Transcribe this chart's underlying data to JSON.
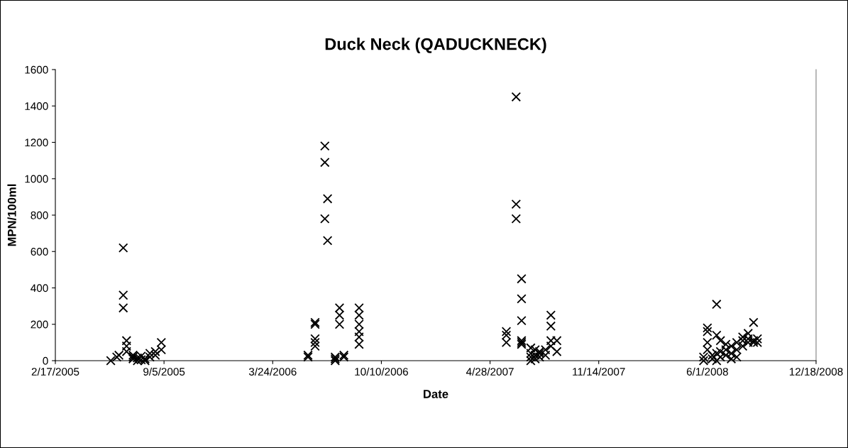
{
  "chart_data": {
    "type": "scatter",
    "title": "Duck Neck (QADUCKNECK)",
    "xlabel": "Date",
    "ylabel": "MPN/100ml",
    "series": [
      {
        "color": "#000000",
        "x": [
          "2005-05-30",
          "2005-06-10",
          "2005-06-14",
          "2005-06-22",
          "2005-06-22",
          "2005-06-22",
          "2005-06-28",
          "2005-06-28",
          "2005-06-28",
          "2005-07-10",
          "2005-07-10",
          "2005-07-10",
          "2005-07-18",
          "2005-07-18",
          "2005-07-25",
          "2005-07-25",
          "2005-08-01",
          "2005-08-01",
          "2005-08-10",
          "2005-08-10",
          "2005-08-20",
          "2005-08-20",
          "2005-08-31",
          "2005-08-31",
          "2006-05-28",
          "2006-05-28",
          "2006-06-10",
          "2006-06-10",
          "2006-06-10",
          "2006-06-10",
          "2006-06-10",
          "2006-06-28",
          "2006-06-28",
          "2006-06-28",
          "2006-07-03",
          "2006-07-03",
          "2006-07-17",
          "2006-07-17",
          "2006-07-17",
          "2006-07-25",
          "2006-07-25",
          "2006-07-25",
          "2006-08-02",
          "2006-08-02",
          "2006-08-30",
          "2006-08-30",
          "2006-08-30",
          "2006-08-30",
          "2006-08-30",
          "2006-08-30",
          "2007-05-28",
          "2007-05-28",
          "2007-05-28",
          "2007-06-15",
          "2007-06-15",
          "2007-06-15",
          "2007-06-25",
          "2007-06-25",
          "2007-06-25",
          "2007-06-25",
          "2007-06-25",
          "2007-06-25",
          "2007-07-12",
          "2007-07-12",
          "2007-07-12",
          "2007-07-12",
          "2007-07-20",
          "2007-07-20",
          "2007-07-20",
          "2007-07-28",
          "2007-07-28",
          "2007-07-28",
          "2007-08-08",
          "2007-08-08",
          "2007-08-18",
          "2007-08-18",
          "2007-08-18",
          "2007-08-18",
          "2007-08-29",
          "2007-08-29",
          "2008-05-25",
          "2008-05-25",
          "2008-06-01",
          "2008-06-01",
          "2008-06-01",
          "2008-06-01",
          "2008-06-10",
          "2008-06-10",
          "2008-06-18",
          "2008-06-18",
          "2008-06-18",
          "2008-06-18",
          "2008-06-25",
          "2008-06-25",
          "2008-06-25",
          "2008-07-05",
          "2008-07-05",
          "2008-07-05",
          "2008-07-15",
          "2008-07-15",
          "2008-07-15",
          "2008-07-25",
          "2008-07-25",
          "2008-07-25",
          "2008-08-05",
          "2008-08-05",
          "2008-08-05",
          "2008-08-15",
          "2008-08-15",
          "2008-08-15",
          "2008-08-25",
          "2008-08-25",
          "2008-08-25",
          "2008-09-01",
          "2008-09-01"
        ],
        "values": [
          0,
          20,
          30,
          620,
          360,
          290,
          110,
          80,
          50,
          30,
          20,
          10,
          0,
          15,
          5,
          25,
          10,
          0,
          20,
          40,
          50,
          30,
          100,
          60,
          30,
          20,
          210,
          200,
          120,
          100,
          80,
          1180,
          1090,
          780,
          890,
          660,
          20,
          10,
          0,
          290,
          250,
          200,
          30,
          20,
          290,
          250,
          200,
          160,
          130,
          90,
          160,
          140,
          100,
          1450,
          860,
          780,
          450,
          340,
          220,
          110,
          100,
          90,
          70,
          40,
          20,
          0,
          60,
          30,
          10,
          50,
          20,
          40,
          60,
          30,
          250,
          190,
          110,
          80,
          110,
          50,
          20,
          0,
          180,
          160,
          100,
          60,
          30,
          10,
          310,
          140,
          40,
          0,
          110,
          50,
          20,
          90,
          60,
          30,
          80,
          10,
          40,
          100,
          60,
          20,
          130,
          110,
          80,
          150,
          120,
          100,
          210,
          110,
          100,
          120,
          100
        ]
      }
    ],
    "xlim": [
      "2005-02-17",
      "2008-12-18"
    ],
    "xticks": [
      {
        "value": "2005-02-17",
        "label": "2/17/2005"
      },
      {
        "value": "2005-09-05",
        "label": "9/5/2005"
      },
      {
        "value": "2006-03-24",
        "label": "3/24/2006"
      },
      {
        "value": "2006-10-10",
        "label": "10/10/2006"
      },
      {
        "value": "2007-04-28",
        "label": "4/28/2007"
      },
      {
        "value": "2007-11-14",
        "label": "11/14/2007"
      },
      {
        "value": "2008-06-01",
        "label": "6/1/2008"
      },
      {
        "value": "2008-12-18",
        "label": "12/18/2008"
      }
    ],
    "ylim": [
      0,
      1600
    ],
    "yticks": [
      0,
      200,
      400,
      600,
      800,
      1000,
      1200,
      1400,
      1600
    ],
    "grid": false,
    "marker": "cross"
  }
}
